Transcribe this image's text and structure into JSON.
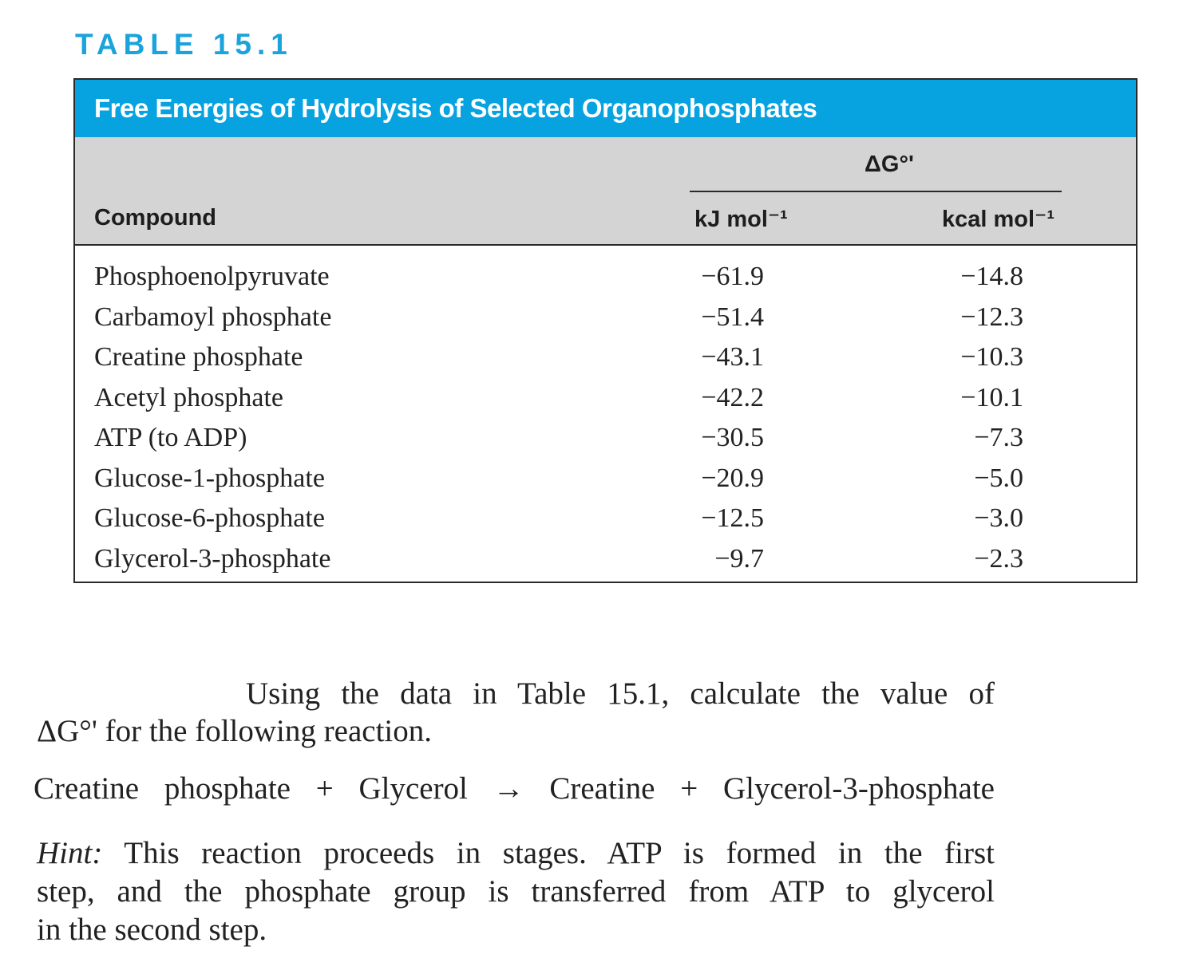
{
  "table_label": "TABLE 15.1",
  "table": {
    "title": "Free Energies of Hydrolysis of Selected Organophosphates",
    "group_header": "ΔG°'",
    "columns": {
      "compound": "Compound",
      "kj": "kJ mol⁻¹",
      "kcal": "kcal mol⁻¹"
    },
    "rows": [
      {
        "compound": "Phosphoenolpyruvate",
        "kj": "−61.9",
        "kcal": "−14.8"
      },
      {
        "compound": "Carbamoyl phosphate",
        "kj": "−51.4",
        "kcal": "−12.3"
      },
      {
        "compound": "Creatine phosphate",
        "kj": "−43.1",
        "kcal": "−10.3"
      },
      {
        "compound": "Acetyl phosphate",
        "kj": "−42.2",
        "kcal": "−10.1"
      },
      {
        "compound": "ATP (to ADP)",
        "kj": "−30.5",
        "kcal": "−7.3"
      },
      {
        "compound": "Glucose-1-phosphate",
        "kj": "−20.9",
        "kcal": "−5.0"
      },
      {
        "compound": "Glucose-6-phosphate",
        "kj": "−12.5",
        "kcal": "−3.0"
      },
      {
        "compound": "Glycerol-3-phosphate",
        "kj": "−9.7",
        "kcal": "−2.3"
      }
    ]
  },
  "question": {
    "line1": "Using the data in Table 15.1, calculate the value of",
    "line2": "ΔG°' for the following reaction."
  },
  "reaction": "Creatine phosphate + Glycerol → Creatine + Glycerol-3-phosphate",
  "hint": {
    "label": "Hint:",
    "line1": "This reaction proceeds in stages. ATP is formed in the first",
    "line2": "step, and the phosphate group is transferred from ATP to glycerol",
    "line3": "in the second step."
  }
}
